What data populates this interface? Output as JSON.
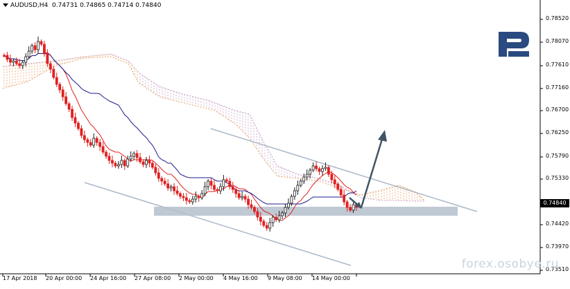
{
  "header": {
    "symbol": "AUDUSD,H4",
    "ohlc": "0.74731 0.74865 0.74714 0.74840"
  },
  "price_axis": {
    "labels": [
      "0.78520",
      "0.78070",
      "0.77610",
      "0.77160",
      "0.76700",
      "0.76250",
      "0.75790",
      "0.75330",
      "0.74840",
      "0.74420",
      "0.73970",
      "0.73510"
    ],
    "current_price": "0.74840"
  },
  "time_axis": {
    "labels": [
      "17 Apr 2018",
      "20 Apr 00:00",
      "24 Apr 16:00",
      "27 Apr 08:00",
      "2 May 00:00",
      "4 May 16:00",
      "9 May 08:00",
      "14 May 00:00"
    ]
  },
  "watermark": "forex.osobye.ru",
  "colors": {
    "bull": "#1a1a1a",
    "bear": "#e02020",
    "tenkan": "#e02020",
    "kijun": "#1c1c8c",
    "cloud_up": "#e8a060",
    "cloud_down": "#c8a0c8",
    "channel": "#aab8c8",
    "support_zone": "#b4c0cc",
    "forecast_arrow": "#3f5566",
    "logo": "#2a4a80"
  },
  "icons": {
    "symbol_menu": "triangle-down-icon",
    "logo": "roboforex-logo"
  }
}
